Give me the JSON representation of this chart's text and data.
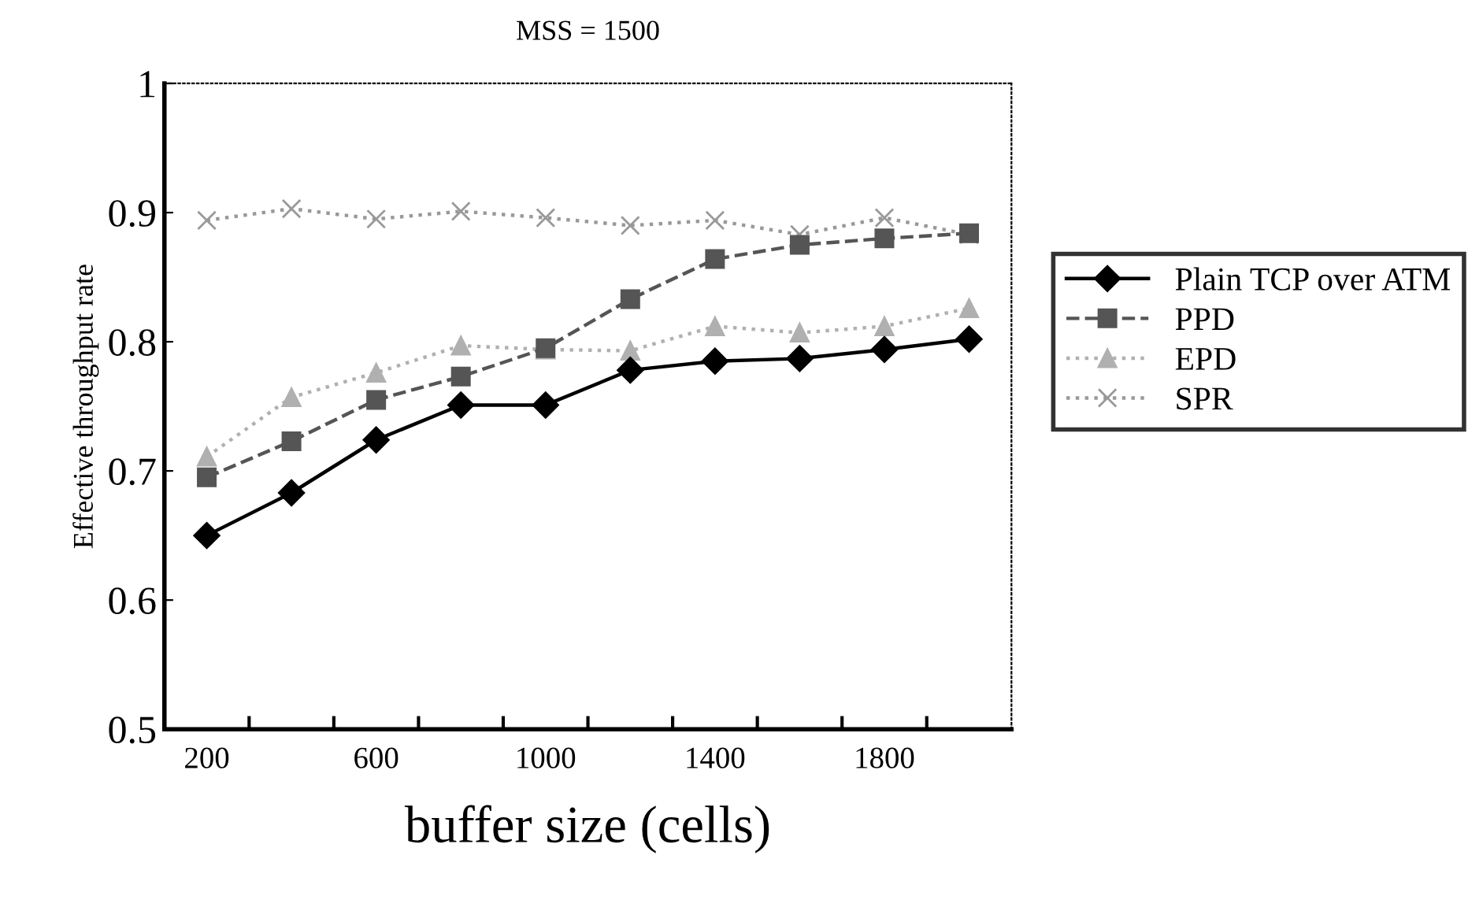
{
  "chart_data": {
    "type": "line",
    "title": "MSS = 1500",
    "xlabel": "buffer size (cells)",
    "ylabel": "Effective throughput rate",
    "categories": [
      "200",
      null,
      "600",
      null,
      "1000",
      null,
      "1400",
      null,
      "1800",
      null
    ],
    "series": [
      {
        "name": "Plain TCP over ATM",
        "color": "#000000",
        "marker": "diamond",
        "line_style": "solid",
        "values": [
          0.65,
          0.683,
          0.724,
          0.751,
          0.751,
          0.778,
          0.785,
          0.787,
          0.794,
          0.802
        ]
      },
      {
        "name": "PPD",
        "color": "#555555",
        "marker": "square",
        "line_style": "dashed",
        "values": [
          0.695,
          0.723,
          0.755,
          0.773,
          0.795,
          0.833,
          0.864,
          0.875,
          0.88,
          0.884
        ]
      },
      {
        "name": "EPD",
        "color": "#b0b0b0",
        "marker": "triangle",
        "line_style": "dotted",
        "values": [
          0.711,
          0.757,
          0.776,
          0.797,
          0.794,
          0.793,
          0.812,
          0.807,
          0.812,
          0.826
        ]
      },
      {
        "name": "SPR",
        "color": "#999999",
        "marker": "cross",
        "line_style": "dotted",
        "values": [
          0.894,
          0.903,
          0.895,
          0.901,
          0.896,
          0.89,
          0.894,
          0.883,
          0.896,
          0.883
        ]
      }
    ],
    "ylim": [
      0.5,
      1
    ],
    "yticks": [
      0.5,
      0.6,
      0.7,
      0.8,
      0.9,
      1
    ],
    "legend": "right",
    "grid": false
  }
}
